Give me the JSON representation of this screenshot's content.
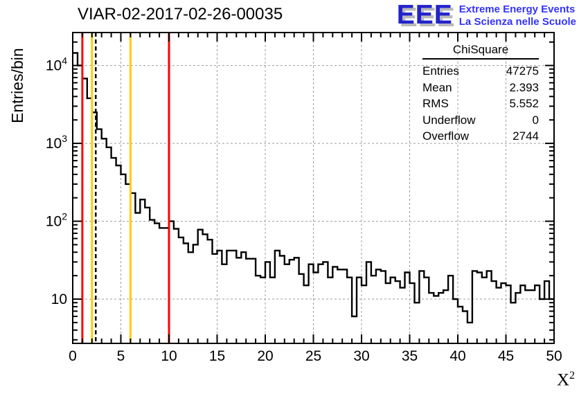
{
  "title": "VIAR-02-2017-02-26-00035",
  "logo": {
    "acronym": "EEE",
    "line1": "Extreme Energy Events",
    "line2": "La Scienza nelle Scuole"
  },
  "stats": {
    "title": "ChiSquare",
    "rows": [
      {
        "label": "Entries",
        "value": "47275"
      },
      {
        "label": "Mean",
        "value": "2.393"
      },
      {
        "label": "RMS",
        "value": "5.552"
      },
      {
        "label": "Underflow",
        "value": "0"
      },
      {
        "label": "Overflow",
        "value": "2744"
      }
    ]
  },
  "axes": {
    "y_title": "Entries/bin",
    "x_title_base": "X",
    "x_title_exp": "2",
    "x_tick_labels": [
      0,
      5,
      10,
      15,
      20,
      25,
      30,
      35,
      40,
      45,
      50
    ],
    "y_tick_labels": [
      {
        "value": 10,
        "base": "10",
        "exp": ""
      },
      {
        "value": 100,
        "base": "10",
        "exp": "2"
      },
      {
        "value": 1000,
        "base": "10",
        "exp": "3"
      },
      {
        "value": 10000,
        "base": "10",
        "exp": "4"
      }
    ]
  },
  "colors": {
    "histogram": "#000000",
    "frame": "#000000",
    "grid": "#9c9c9c",
    "red_marker": "#ff0000",
    "yellow_marker": "#ffcc00",
    "mean_marker": "#000000",
    "logo_blue": "#2222cc",
    "logo_text_blue": "#3333ff"
  },
  "chart_data": {
    "type": "bar",
    "subtype": "step-histogram",
    "title": "VIAR-02-2017-02-26-00035",
    "xlabel": "X^2",
    "ylabel": "Entries/bin",
    "x_min": 0,
    "x_max": 50,
    "bin_width": 0.5,
    "y_scale": "log",
    "ylim": [
      2.7,
      26500
    ],
    "grid": true,
    "legend": false,
    "values": [
      14500,
      10000,
      6800,
      3800,
      2500,
      1520,
      1150,
      890,
      650,
      520,
      400,
      300,
      230,
      128,
      190,
      150,
      104,
      94,
      82,
      82,
      100,
      80,
      62,
      52,
      40,
      50,
      78,
      68,
      58,
      38,
      42,
      28,
      42,
      42,
      34,
      40,
      33,
      33,
      20,
      19,
      30,
      19,
      42,
      36,
      28,
      32,
      34,
      21,
      15,
      28,
      22,
      28,
      30,
      19,
      26,
      24,
      24,
      19,
      6,
      19,
      15,
      30,
      20,
      24,
      23,
      16,
      19,
      17,
      14,
      22,
      16,
      9,
      23,
      19,
      12,
      11,
      12,
      13,
      20,
      10,
      8,
      7,
      5,
      23,
      22,
      19,
      23,
      17,
      14,
      16,
      15,
      9,
      12,
      15,
      13,
      13,
      15,
      10,
      17,
      10
    ],
    "markers": [
      {
        "x": 1,
        "color": "#ff0000",
        "style": "solid",
        "name": "red-line-x1"
      },
      {
        "x": 2,
        "color": "#ffcc00",
        "style": "solid",
        "name": "yellow-line-x2"
      },
      {
        "x": 2.393,
        "color": "#000000",
        "style": "dashed",
        "name": "mean-line"
      },
      {
        "x": 6,
        "color": "#ffcc00",
        "style": "solid",
        "name": "yellow-line-x6"
      },
      {
        "x": 10,
        "color": "#ff0000",
        "style": "solid",
        "name": "red-line-x10"
      }
    ]
  }
}
